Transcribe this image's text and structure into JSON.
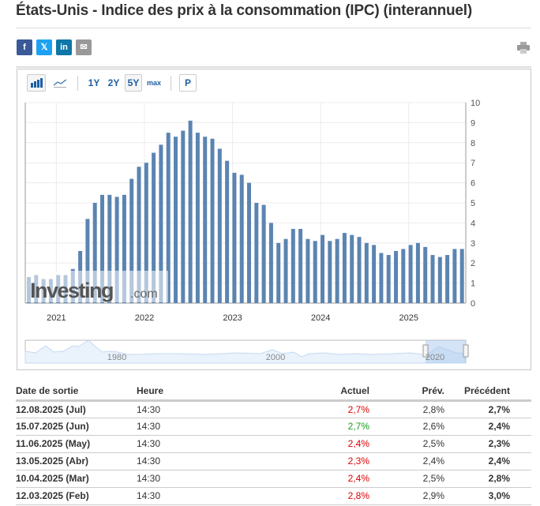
{
  "title": "États-Unis - Indice des prix à la consommation (IPC) (interannuel)",
  "share": [
    {
      "icon": "facebook-icon",
      "label": "f",
      "color": "#3b5998"
    },
    {
      "icon": "x-twitter-icon",
      "label": "𝕏",
      "color": "#1da1f2"
    },
    {
      "icon": "linkedin-icon",
      "label": "in",
      "color": "#0e76a8"
    },
    {
      "icon": "email-icon",
      "label": "✉",
      "color": "#999999"
    }
  ],
  "print_icon": "printer-icon",
  "toolbar": {
    "bar_icon": "bar-chart-icon",
    "line_icon": "line-chart-icon",
    "ranges": [
      "1Y",
      "2Y",
      "5Y",
      "max"
    ],
    "selected_range": "5Y",
    "p_label": "P"
  },
  "chart_data": {
    "type": "bar",
    "x_start": "2020-08",
    "x_end": "2025-07",
    "frequency": "monthly",
    "values": [
      1.3,
      1.4,
      1.2,
      1.2,
      1.4,
      1.4,
      1.7,
      2.6,
      4.2,
      5.0,
      5.4,
      5.4,
      5.3,
      5.4,
      6.2,
      6.8,
      7.0,
      7.5,
      7.9,
      8.5,
      8.3,
      8.6,
      9.1,
      8.5,
      8.3,
      8.2,
      7.7,
      7.1,
      6.5,
      6.4,
      6.0,
      5.0,
      4.9,
      4.0,
      3.0,
      3.2,
      3.7,
      3.7,
      3.2,
      3.1,
      3.4,
      3.1,
      3.2,
      3.5,
      3.4,
      3.3,
      3.0,
      2.9,
      2.5,
      2.4,
      2.6,
      2.7,
      2.9,
      3.0,
      2.8,
      2.4,
      2.3,
      2.4,
      2.7,
      2.7
    ],
    "x_tick_labels": [
      "2021",
      "2022",
      "2023",
      "2024",
      "2025"
    ],
    "y_tick_labels": [
      "0",
      "1",
      "2",
      "3",
      "4",
      "5",
      "6",
      "7",
      "8",
      "9",
      "10"
    ],
    "ylim": [
      0,
      10
    ],
    "y_axis_side": "right",
    "grid": true,
    "bar_color": "#5b84b1",
    "watermark": "Investing.com",
    "navigator_labels": [
      "1980",
      "2000",
      "2020"
    ]
  },
  "table": {
    "headers": [
      "Date de sortie",
      "Heure",
      "Actuel",
      "Prév.",
      "Précédent"
    ],
    "rows": [
      {
        "date": "12.08.2025 (Jul)",
        "time": "14:30",
        "actual": "2,7%",
        "actual_color": "#e00000",
        "forecast": "2,8%",
        "previous": "2,7%"
      },
      {
        "date": "15.07.2025 (Jun)",
        "time": "14:30",
        "actual": "2,7%",
        "actual_color": "#1a9c1a",
        "forecast": "2,6%",
        "previous": "2,4%"
      },
      {
        "date": "11.06.2025 (May)",
        "time": "14:30",
        "actual": "2,4%",
        "actual_color": "#e00000",
        "forecast": "2,5%",
        "previous": "2,3%"
      },
      {
        "date": "13.05.2025 (Abr)",
        "time": "14:30",
        "actual": "2,3%",
        "actual_color": "#e00000",
        "forecast": "2,4%",
        "previous": "2,4%"
      },
      {
        "date": "10.04.2025 (Mar)",
        "time": "14:30",
        "actual": "2,4%",
        "actual_color": "#e00000",
        "forecast": "2,5%",
        "previous": "2,8%"
      },
      {
        "date": "12.03.2025 (Feb)",
        "time": "14:30",
        "actual": "2,8%",
        "actual_color": "#e00000",
        "forecast": "2,9%",
        "previous": "3,0%"
      }
    ]
  }
}
